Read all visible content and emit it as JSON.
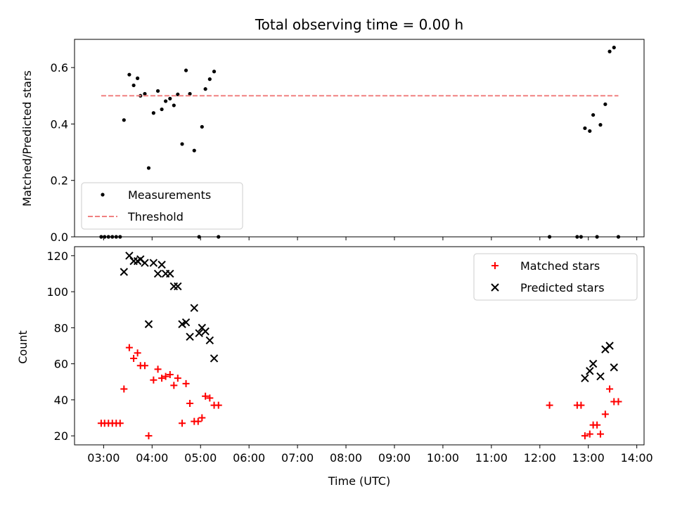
{
  "chart_data": [
    {
      "type": "scatter",
      "title": "Total observing time = 0.00 h",
      "xlabel": "",
      "ylabel": "Matched/Predicted stars",
      "ylim": [
        0,
        0.7
      ],
      "y_ticks": [
        "0.0",
        "0.2",
        "0.4",
        "0.6"
      ],
      "legend": {
        "placement": "lower-left",
        "entries": [
          "Measurements",
          "Threshold"
        ]
      },
      "series": [
        {
          "name": "Measurements",
          "color": "#000000",
          "marker": "dot",
          "points": [
            [
              2.95,
              0
            ],
            [
              3.02,
              0
            ],
            [
              3.1,
              0
            ],
            [
              3.18,
              0
            ],
            [
              3.26,
              0
            ],
            [
              3.34,
              0
            ],
            [
              3.42,
              0.414
            ],
            [
              3.53,
              0.575
            ],
            [
              3.62,
              0.537
            ],
            [
              3.7,
              0.562
            ],
            [
              3.76,
              0.5
            ],
            [
              3.85,
              0.507
            ],
            [
              3.93,
              0.244
            ],
            [
              4.03,
              0.439
            ],
            [
              4.12,
              0.517
            ],
            [
              4.2,
              0.452
            ],
            [
              4.28,
              0.481
            ],
            [
              4.37,
              0.49
            ],
            [
              4.45,
              0.466
            ],
            [
              4.53,
              0.505
            ],
            [
              4.62,
              0.329
            ],
            [
              4.7,
              0.59
            ],
            [
              4.78,
              0.507
            ],
            [
              4.87,
              0.306
            ],
            [
              4.97,
              0
            ],
            [
              5.03,
              0.39
            ],
            [
              5.1,
              0.524
            ],
            [
              5.19,
              0.559
            ],
            [
              5.28,
              0.586
            ],
            [
              5.37,
              0
            ],
            [
              12.2,
              0
            ],
            [
              12.77,
              0
            ],
            [
              12.85,
              0
            ],
            [
              12.93,
              0.385
            ],
            [
              13.03,
              0.375
            ],
            [
              13.1,
              0.432
            ],
            [
              13.18,
              0
            ],
            [
              13.25,
              0.397
            ],
            [
              13.35,
              0.47
            ],
            [
              13.44,
              0.657
            ],
            [
              13.53,
              0.671
            ],
            [
              13.62,
              0
            ]
          ]
        },
        {
          "name": "Threshold",
          "color": "#f08080",
          "style": "dashed",
          "x": [
            2.95,
            13.62
          ],
          "y": [
            0.5,
            0.5
          ]
        }
      ]
    },
    {
      "type": "scatter",
      "title": "",
      "xlabel": "Time (UTC)",
      "ylabel": "Count",
      "xlim": [
        2.4,
        14.15
      ],
      "ylim": [
        15,
        125
      ],
      "x_ticks": [
        "03:00",
        "04:00",
        "05:00",
        "06:00",
        "07:00",
        "08:00",
        "09:00",
        "10:00",
        "11:00",
        "12:00",
        "13:00",
        "14:00"
      ],
      "x_tick_values": [
        3,
        4,
        5,
        6,
        7,
        8,
        9,
        10,
        11,
        12,
        13,
        14
      ],
      "y_ticks": [
        "20",
        "40",
        "60",
        "80",
        "100",
        "120"
      ],
      "legend": {
        "placement": "top-right",
        "entries": [
          "Matched stars",
          "Predicted stars"
        ]
      },
      "series": [
        {
          "name": "Matched stars",
          "color": "#ff0000",
          "marker": "plus",
          "points": [
            [
              2.95,
              27
            ],
            [
              3.02,
              27
            ],
            [
              3.1,
              27
            ],
            [
              3.18,
              27
            ],
            [
              3.26,
              27
            ],
            [
              3.34,
              27
            ],
            [
              3.42,
              46
            ],
            [
              3.53,
              69
            ],
            [
              3.62,
              63
            ],
            [
              3.7,
              66
            ],
            [
              3.76,
              59
            ],
            [
              3.85,
              59
            ],
            [
              3.93,
              20
            ],
            [
              4.03,
              51
            ],
            [
              4.12,
              57
            ],
            [
              4.2,
              52
            ],
            [
              4.28,
              53
            ],
            [
              4.37,
              54
            ],
            [
              4.45,
              48
            ],
            [
              4.53,
              52
            ],
            [
              4.62,
              27
            ],
            [
              4.7,
              49
            ],
            [
              4.78,
              38
            ],
            [
              4.87,
              28
            ],
            [
              4.95,
              28
            ],
            [
              5.03,
              30
            ],
            [
              5.1,
              42
            ],
            [
              5.19,
              41
            ],
            [
              5.28,
              37
            ],
            [
              5.37,
              37
            ],
            [
              12.2,
              37
            ],
            [
              12.77,
              37
            ],
            [
              12.85,
              37
            ],
            [
              12.93,
              20
            ],
            [
              13.03,
              21
            ],
            [
              13.1,
              26
            ],
            [
              13.18,
              26
            ],
            [
              13.25,
              21
            ],
            [
              13.35,
              32
            ],
            [
              13.44,
              46
            ],
            [
              13.53,
              39
            ],
            [
              13.62,
              39
            ]
          ]
        },
        {
          "name": "Predicted stars",
          "color": "#000000",
          "marker": "x",
          "points": [
            [
              3.42,
              111
            ],
            [
              3.53,
              120
            ],
            [
              3.62,
              117
            ],
            [
              3.7,
              117
            ],
            [
              3.76,
              118
            ],
            [
              3.85,
              116
            ],
            [
              3.93,
              82
            ],
            [
              4.03,
              116
            ],
            [
              4.12,
              110
            ],
            [
              4.2,
              115
            ],
            [
              4.28,
              110
            ],
            [
              4.37,
              110
            ],
            [
              4.45,
              103
            ],
            [
              4.53,
              103
            ],
            [
              4.62,
              82
            ],
            [
              4.7,
              83
            ],
            [
              4.78,
              75
            ],
            [
              4.87,
              91
            ],
            [
              4.97,
              77
            ],
            [
              5.03,
              80
            ],
            [
              5.1,
              78
            ],
            [
              5.19,
              73
            ],
            [
              5.28,
              63
            ],
            [
              12.93,
              52
            ],
            [
              13.03,
              56
            ],
            [
              13.1,
              60
            ],
            [
              13.25,
              53
            ],
            [
              13.35,
              68
            ],
            [
              13.44,
              70
            ],
            [
              13.53,
              58
            ]
          ]
        }
      ]
    }
  ]
}
